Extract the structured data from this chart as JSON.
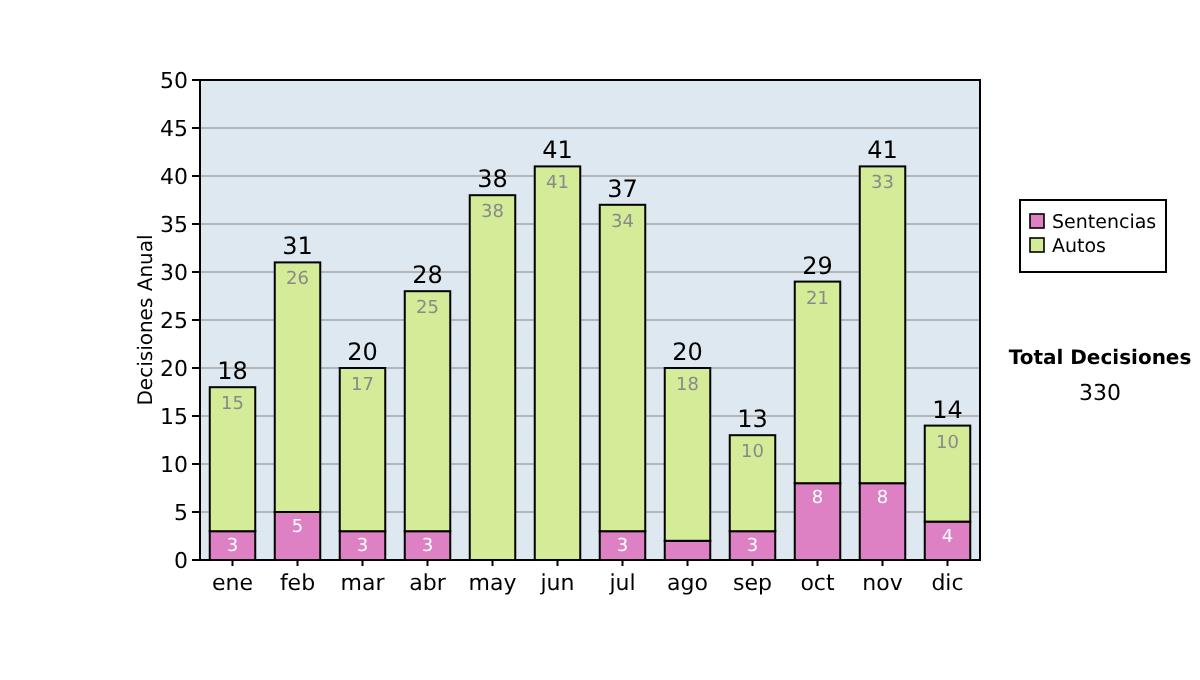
{
  "chart_data": {
    "type": "bar",
    "stacked": true,
    "ylabel": "Decisiones Anual",
    "categories": [
      "ene",
      "feb",
      "mar",
      "abr",
      "may",
      "jun",
      "jul",
      "ago",
      "sep",
      "oct",
      "nov",
      "dic"
    ],
    "series": [
      {
        "name": "Sentencias",
        "color": "#dd80c4",
        "values": [
          3,
          5,
          3,
          3,
          0,
          0,
          3,
          2,
          3,
          8,
          8,
          4
        ],
        "value_labels": [
          "3",
          "5",
          "3",
          "3",
          null,
          null,
          "3",
          null,
          "3",
          "8",
          "8",
          "4"
        ]
      },
      {
        "name": "Autos",
        "color": "#d4eb97",
        "values": [
          15,
          26,
          17,
          25,
          38,
          41,
          34,
          18,
          10,
          21,
          33,
          10
        ],
        "value_labels": [
          "15",
          "26",
          "17",
          "25",
          "38",
          "41",
          "34",
          "18",
          "10",
          "21",
          "33",
          "10"
        ]
      }
    ],
    "totals": [
      "18",
      "31",
      "20",
      "28",
      "38",
      "41",
      "37",
      "20",
      "13",
      "29",
      "41",
      "14"
    ],
    "ylim": [
      0,
      50
    ],
    "yticks": [
      0,
      5,
      10,
      15,
      20,
      25,
      30,
      35,
      40,
      45,
      50
    ],
    "grid": "y",
    "legend": "right",
    "annotations": [
      "Total Decisiones",
      "330"
    ]
  }
}
